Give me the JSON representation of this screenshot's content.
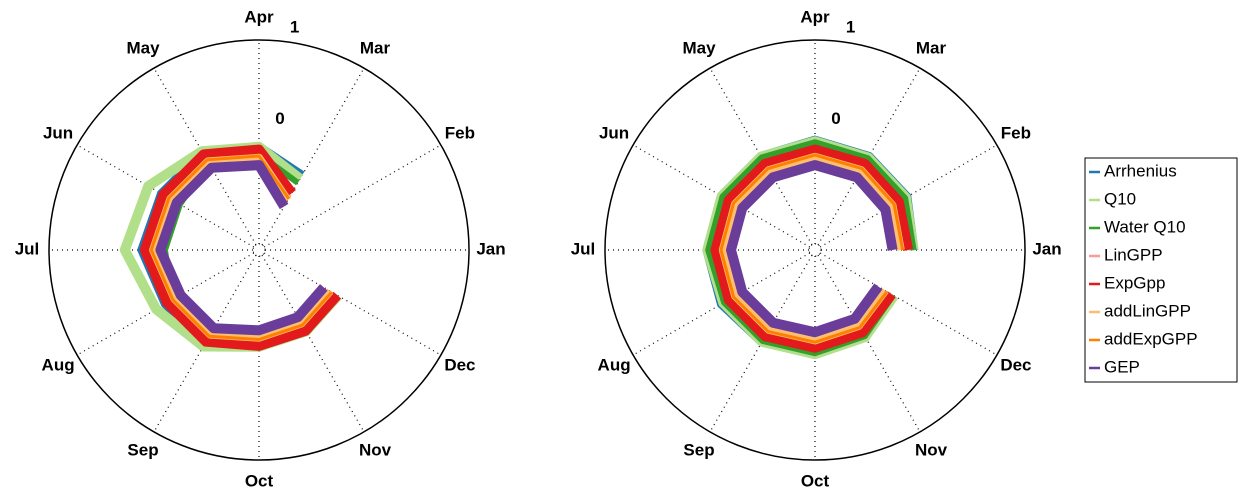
{
  "chart_data": [
    {
      "type": "polar",
      "categories": [
        "Jan",
        "Feb",
        "Mar",
        "Apr",
        "May",
        "Jun",
        "Jul",
        "Aug",
        "Sep",
        "Oct",
        "Nov",
        "Dec"
      ],
      "rlim": [
        -1.3,
        1
      ],
      "rticks": [
        0,
        1
      ],
      "series": [
        {
          "color": "#1f78b4",
          "width": 6,
          "values": [
            null,
            null,
            -0.34,
            -0.15,
            -0.05,
            -0.05,
            0.0,
            -0.1,
            -0.1,
            -0.25,
            -0.28,
            -0.31
          ]
        },
        {
          "color": "#b2df8a",
          "width": 10,
          "values": [
            null,
            null,
            -0.4,
            -0.17,
            -0.05,
            0.1,
            0.17,
            0.0,
            -0.08,
            -0.24,
            -0.27,
            -0.3
          ]
        },
        {
          "color": "#33a02c",
          "width": 6,
          "values": [
            null,
            null,
            -0.45,
            -0.25,
            -0.2,
            -0.3,
            -0.27,
            -0.2,
            -0.12,
            -0.25,
            -0.28,
            -0.31
          ]
        },
        {
          "color": "#fb9a99",
          "width": 4,
          "values": [
            null,
            null,
            -0.63,
            -0.25,
            -0.14,
            -0.14,
            -0.1,
            -0.19,
            -0.19,
            -0.3,
            -0.33,
            -0.36
          ]
        },
        {
          "color": "#e31a1c",
          "width": 10,
          "values": [
            null,
            null,
            -0.58,
            -0.2,
            -0.09,
            -0.09,
            -0.05,
            -0.14,
            -0.14,
            -0.25,
            -0.28,
            -0.31
          ]
        },
        {
          "color": "#fdbf6f",
          "width": 8,
          "values": [
            null,
            null,
            -0.67,
            -0.29,
            -0.18,
            -0.18,
            -0.14,
            -0.23,
            -0.23,
            -0.34,
            -0.37,
            -0.4
          ]
        },
        {
          "color": "#ff7f00",
          "width": 3,
          "values": [
            null,
            null,
            -0.65,
            -0.27,
            -0.16,
            -0.16,
            -0.12,
            -0.21,
            -0.21,
            -0.32,
            -0.35,
            -0.38
          ]
        },
        {
          "color": "#6a3d9a",
          "width": 10,
          "values": [
            null,
            null,
            -0.75,
            -0.37,
            -0.26,
            -0.26,
            -0.22,
            -0.31,
            -0.31,
            -0.42,
            -0.45,
            -0.48
          ]
        }
      ]
    },
    {
      "type": "polar",
      "categories": [
        "Jan",
        "Feb",
        "Mar",
        "Apr",
        "May",
        "Jun",
        "Jul",
        "Aug",
        "Sep",
        "Oct",
        "Nov",
        "Dec"
      ],
      "rlim": [
        -1.3,
        1
      ],
      "rticks": [
        0,
        1
      ],
      "series": [
        {
          "name": "Arrhenius",
          "color": "#1f78b4",
          "width": 6,
          "values": [
            -0.2,
            -0.12,
            -0.1,
            -0.08,
            -0.1,
            -0.1,
            -0.1,
            -0.1,
            -0.12,
            -0.14,
            -0.18,
            -0.3
          ]
        },
        {
          "name": "Q10",
          "color": "#b2df8a",
          "width": 10,
          "values": [
            -0.22,
            -0.15,
            -0.13,
            -0.11,
            -0.12,
            -0.12,
            -0.12,
            -0.14,
            -0.14,
            -0.16,
            -0.2,
            -0.3
          ]
        },
        {
          "name": "Water Q10",
          "color": "#33a02c",
          "width": 6,
          "values": [
            -0.22,
            -0.16,
            -0.14,
            -0.12,
            -0.13,
            -0.13,
            -0.13,
            -0.15,
            -0.15,
            -0.17,
            -0.21,
            -0.31
          ]
        },
        {
          "name": "LinGPP",
          "color": "#fb9a99",
          "width": 4,
          "values": [
            -0.28,
            -0.24,
            -0.21,
            -0.2,
            -0.21,
            -0.21,
            -0.21,
            -0.21,
            -0.21,
            -0.23,
            -0.26,
            -0.33
          ]
        },
        {
          "name": "ExpGpp",
          "color": "#e31a1c",
          "width": 10,
          "values": [
            -0.28,
            -0.24,
            -0.21,
            -0.2,
            -0.21,
            -0.21,
            -0.21,
            -0.21,
            -0.21,
            -0.23,
            -0.26,
            -0.33
          ]
        },
        {
          "name": "addLinGPP",
          "color": "#fdbf6f",
          "width": 8,
          "values": [
            -0.36,
            -0.32,
            -0.29,
            -0.28,
            -0.29,
            -0.29,
            -0.29,
            -0.29,
            -0.29,
            -0.31,
            -0.34,
            -0.41
          ]
        },
        {
          "name": "addExpGPP",
          "color": "#ff7f00",
          "width": 3,
          "values": [
            -0.34,
            -0.3,
            -0.27,
            -0.26,
            -0.27,
            -0.27,
            -0.27,
            -0.27,
            -0.27,
            -0.29,
            -0.32,
            -0.39
          ]
        },
        {
          "name": "GEP",
          "color": "#6a3d9a",
          "width": 10,
          "values": [
            -0.45,
            -0.41,
            -0.38,
            -0.37,
            -0.38,
            -0.38,
            -0.38,
            -0.38,
            -0.38,
            -0.4,
            -0.43,
            -0.5
          ]
        }
      ]
    }
  ]
}
